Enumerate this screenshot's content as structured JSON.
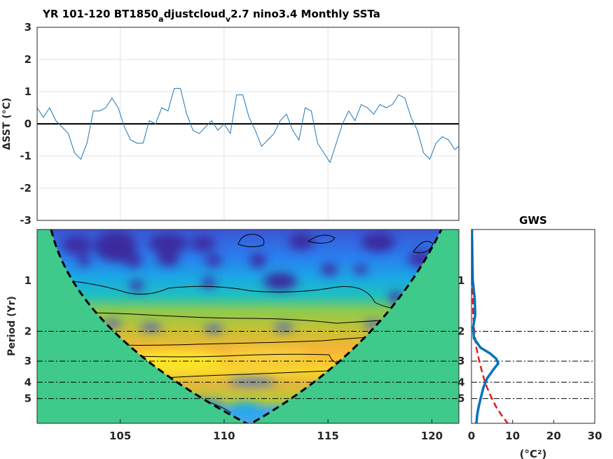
{
  "figure": {
    "title_main": "YR 101-120 BT1850",
    "title_sub1": "a",
    "title_mid": "djustcloud",
    "title_sub2": "v",
    "title_end": "2.7 nino3.4 Monthly SSTa"
  },
  "colors": {
    "series_line": "#1f77b4",
    "zero_line": "#000000",
    "coi_fill": "#3fc98a",
    "gws_line": "#0072bd",
    "significance": "#e41a1c"
  },
  "chart_data": [
    {
      "type": "line",
      "ylabel": "ΔSST (°C)",
      "ylim": [
        -3,
        3
      ],
      "xlim": [
        101,
        121.3
      ],
      "yticks": [
        "3",
        "2",
        "1",
        "0",
        "-1",
        "-2",
        "-3"
      ],
      "grid": true,
      "x": [
        101.0,
        101.3,
        101.6,
        101.9,
        102.2,
        102.5,
        102.8,
        103.1,
        103.4,
        103.7,
        104.0,
        104.3,
        104.6,
        104.9,
        105.2,
        105.5,
        105.8,
        106.1,
        106.4,
        106.7,
        107.0,
        107.3,
        107.6,
        107.9,
        108.2,
        108.5,
        108.8,
        109.1,
        109.4,
        109.7,
        110.0,
        110.3,
        110.6,
        110.9,
        111.2,
        111.5,
        111.8,
        112.1,
        112.4,
        112.7,
        113.0,
        113.3,
        113.6,
        113.9,
        114.2,
        114.5,
        114.8,
        115.1,
        115.4,
        115.7,
        116.0,
        116.3,
        116.6,
        116.9,
        117.2,
        117.5,
        117.8,
        118.1,
        118.4,
        118.7,
        119.0,
        119.3,
        119.6,
        119.9,
        120.2,
        120.5,
        120.8,
        121.1,
        121.3
      ],
      "values": [
        0.5,
        0.2,
        0.5,
        0.1,
        -0.1,
        -0.3,
        -0.9,
        -1.1,
        -0.6,
        0.4,
        0.4,
        0.5,
        0.8,
        0.5,
        -0.1,
        -0.5,
        -0.6,
        -0.6,
        0.1,
        0.0,
        0.5,
        0.4,
        1.1,
        1.1,
        0.3,
        -0.2,
        -0.3,
        -0.1,
        0.1,
        -0.2,
        0.0,
        -0.3,
        0.9,
        0.9,
        0.2,
        -0.2,
        -0.7,
        -0.5,
        -0.3,
        0.1,
        0.3,
        -0.2,
        -0.5,
        0.5,
        0.4,
        -0.6,
        -0.9,
        -1.2,
        -0.6,
        0.0,
        0.4,
        0.1,
        0.6,
        0.5,
        0.3,
        0.6,
        0.5,
        0.6,
        0.9,
        0.8,
        0.2,
        -0.2,
        -0.9,
        -1.1,
        -0.6,
        -0.4,
        -0.5,
        -0.8,
        -0.7
      ]
    },
    {
      "type": "heatmap",
      "ylabel": "Period (Yr)",
      "xlim": [
        101,
        121.3
      ],
      "xticks": [
        "105",
        "110",
        "115",
        "120"
      ],
      "yticks": [
        "1",
        "2",
        "3",
        "4",
        "5"
      ],
      "y_scale": "log2"
    },
    {
      "type": "line",
      "title": "GWS",
      "xlabel": "(°C²)",
      "xlim": [
        0,
        30
      ],
      "xticks": [
        "0",
        "10",
        "20",
        "30"
      ],
      "yticks": [
        "1",
        "2",
        "3",
        "4",
        "5"
      ],
      "series": [
        {
          "period": [
            0.5,
            0.7,
            1.0,
            1.3,
            1.6,
            1.9,
            2.2,
            2.5,
            2.7,
            2.9,
            3.1,
            3.4,
            3.8,
            4.3,
            4.8,
            5.5,
            6.2,
            7.0
          ],
          "values": [
            0.1,
            0.2,
            0.3,
            0.8,
            0.9,
            0.4,
            0.6,
            2.2,
            4.5,
            6.0,
            6.5,
            5.2,
            3.8,
            2.9,
            2.4,
            1.8,
            1.4,
            1.2
          ]
        },
        {
          "period": [
            0.5,
            0.8,
            1.2,
            1.6,
            2.0,
            2.5,
            3.0,
            3.5,
            4.0,
            4.5,
            5.0,
            5.6,
            6.2,
            7.0
          ],
          "values": [
            0.1,
            0.2,
            0.3,
            0.4,
            0.7,
            1.2,
            1.9,
            2.6,
            3.3,
            4.1,
            5.0,
            6.0,
            7.2,
            8.8
          ]
        }
      ]
    }
  ]
}
